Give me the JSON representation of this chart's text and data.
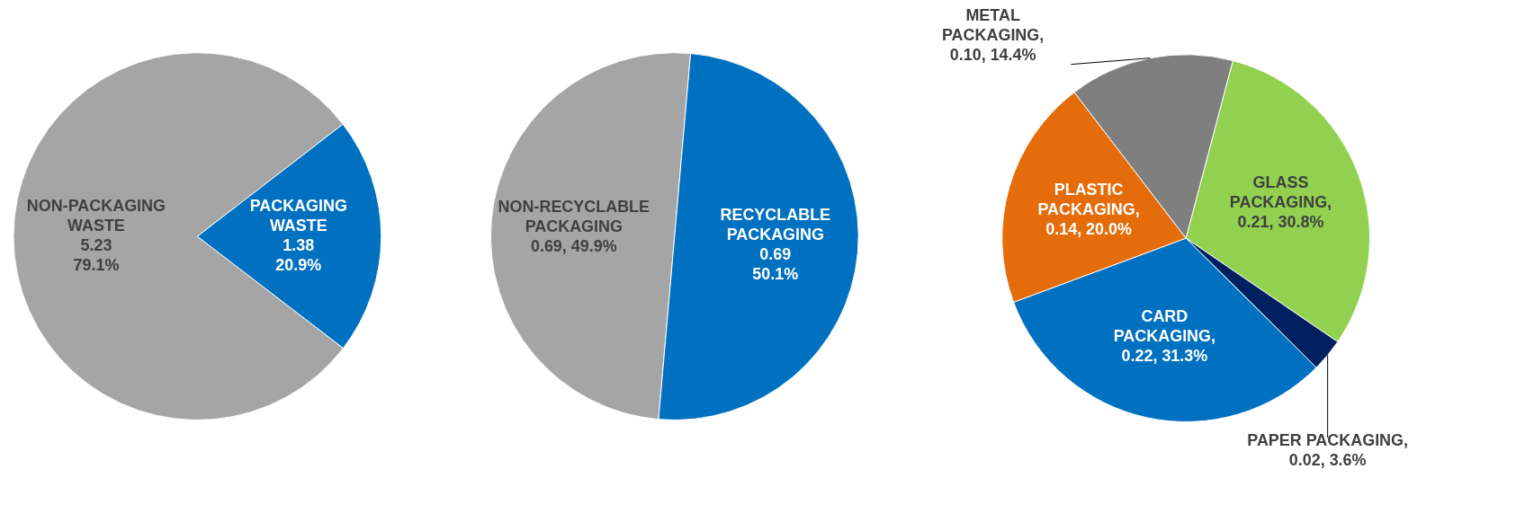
{
  "chart_data": [
    {
      "type": "pie",
      "categories": [
        "NON-PACKAGING WASTE",
        "PACKAGING WASTE"
      ],
      "values": [
        5.23,
        1.38
      ],
      "colors": [
        "#a5a5a5",
        "#0070c0"
      ],
      "value_labels": [
        "\n5.23\n79.1%",
        "\n1.38\n20.9%"
      ]
    },
    {
      "type": "pie",
      "categories": [
        "NON-RECYCLABLE PACKAGING",
        "RECYCLABLE PACKAGING"
      ],
      "values": [
        0.69,
        0.69
      ],
      "colors": [
        "#a5a5a5",
        "#0070c0"
      ],
      "value_labels": [
        "\n0.69, 49.9%",
        "\n0.69\n50.1%"
      ]
    },
    {
      "type": "pie",
      "categories": [
        "GLASS PACKAGING",
        "PAPER PACKAGING",
        "CARD PACKAGING",
        "PLASTIC PACKAGING",
        "METAL PACKAGING"
      ],
      "values": [
        0.21,
        0.02,
        0.22,
        0.14,
        0.1
      ],
      "colors": [
        "#92d050",
        "#002060",
        "#0070c0",
        "#e46c0a",
        "#7f7f7f"
      ],
      "value_labels": [
        ",\n0.21, 30.8%",
        ",\n0.02, 3.6%",
        ",\n0.22, 31.3%",
        ",\n0.14, 20.0%",
        ",\n0.10, 14.4%"
      ]
    }
  ]
}
